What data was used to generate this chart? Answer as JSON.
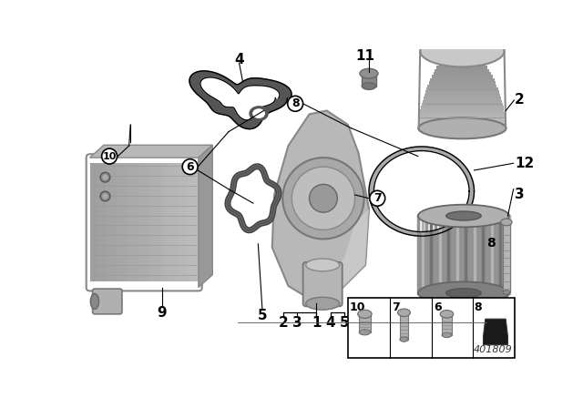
{
  "bg_color": "#ffffff",
  "diagram_number": "401809",
  "line_color": "#333333",
  "part_color_light": "#c8c8c8",
  "part_color_mid": "#a0a0a0",
  "part_color_dark": "#707070",
  "gasket_color": "#444444",
  "belt_color": "#555555"
}
